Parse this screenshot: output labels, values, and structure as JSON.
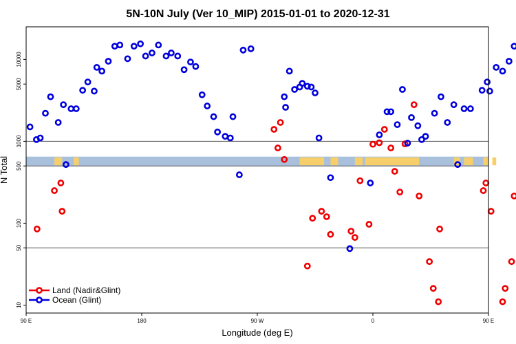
{
  "chart_data": {
    "type": "scatter",
    "title": "5N-10N July (Ver 10_MIP)   2015-01-01 to 2020-12-31",
    "xlabel": "Longitude (deg E)",
    "ylabel": "N Total",
    "xlim": [
      90,
      450
    ],
    "ylim": [
      8,
      25000
    ],
    "yscale": "log",
    "x_ticks": [
      {
        "value": 90,
        "label": "90 E"
      },
      {
        "value": 180,
        "label": "180"
      },
      {
        "value": 270,
        "label": "90 W"
      },
      {
        "value": 360,
        "label": "0"
      },
      {
        "value": 450,
        "label": "90 E"
      },
      {
        "value": 540,
        "label": "180"
      }
    ],
    "y_ticks": [
      {
        "value": 10,
        "label": "10"
      },
      {
        "value": 50,
        "label": "50"
      },
      {
        "value": 100,
        "label": "100"
      },
      {
        "value": 500,
        "label": "500"
      },
      {
        "value": 1000,
        "label": "1000"
      },
      {
        "value": 5000,
        "label": "5000"
      },
      {
        "value": 10000,
        "label": "10000"
      }
    ],
    "reference_lines": [
      50,
      500,
      1000
    ],
    "legend_position": "bottom-left",
    "land_band_y": [
      500,
      650
    ],
    "colors": {
      "land": "#ee0000",
      "ocean": "#0000dd",
      "band_ocean": "#a9c0dc",
      "band_land": "#f7cf6a"
    },
    "series": [
      {
        "name": "Land (Nadir&Glint)",
        "color": "#ee0000",
        "x": [
          98.5,
          112,
          117,
          118,
          283,
          286,
          288,
          291,
          309,
          313,
          320,
          324,
          327,
          343,
          346,
          350,
          357,
          360,
          365,
          369,
          374,
          377,
          381,
          385,
          392,
          396,
          404,
          407,
          411,
          412,
          446,
          448,
          452,
          461,
          463,
          468,
          470
        ],
        "y": [
          85,
          250,
          310,
          140,
          1400,
          830,
          1700,
          600,
          30,
          115,
          140,
          120,
          73,
          80,
          67,
          330,
          97,
          920,
          960,
          1400,
          830,
          430,
          240,
          930,
          2800,
          215,
          34,
          16,
          11,
          85,
          250,
          310,
          140,
          11,
          16,
          34,
          215
        ],
        "precision": "estimated"
      },
      {
        "name": "Ocean (Glint)",
        "color": "#0000dd",
        "x": [
          93,
          98,
          101,
          105,
          109,
          115,
          119,
          121,
          125,
          129,
          134,
          138,
          143,
          145,
          149,
          154,
          159,
          163,
          169,
          174,
          179,
          183,
          188,
          193,
          199,
          203,
          208,
          213,
          218,
          222,
          227,
          231,
          236,
          239,
          245,
          249,
          251,
          256,
          259,
          265,
          291,
          292,
          295,
          299,
          303,
          305,
          309,
          312,
          315,
          318,
          327,
          342,
          358,
          365,
          371,
          374,
          379,
          383,
          387,
          390,
          395,
          398,
          401,
          408,
          413,
          418,
          423,
          426,
          431,
          436,
          445,
          449,
          451,
          456,
          461,
          466,
          470
        ],
        "y": [
          1500,
          1050,
          1100,
          2200,
          3500,
          1700,
          2800,
          520,
          2500,
          2500,
          4200,
          5300,
          4100,
          8000,
          7200,
          9500,
          14500,
          15000,
          10200,
          14500,
          15500,
          11000,
          12000,
          15000,
          11000,
          12000,
          11000,
          7500,
          9300,
          8200,
          3700,
          2700,
          2000,
          1300,
          1150,
          1100,
          2000,
          390,
          13000,
          13500,
          3500,
          2600,
          7200,
          4300,
          4600,
          5100,
          4700,
          4600,
          3900,
          1100,
          360,
          49,
          310,
          1200,
          2300,
          2300,
          1600,
          4300,
          950,
          1950,
          1550,
          1050,
          1150,
          2200,
          3500,
          1700,
          2800,
          520,
          2500,
          2500,
          4200,
          5300,
          4100,
          8000,
          7200,
          9500,
          14500
        ],
        "precision": "estimated"
      }
    ]
  }
}
